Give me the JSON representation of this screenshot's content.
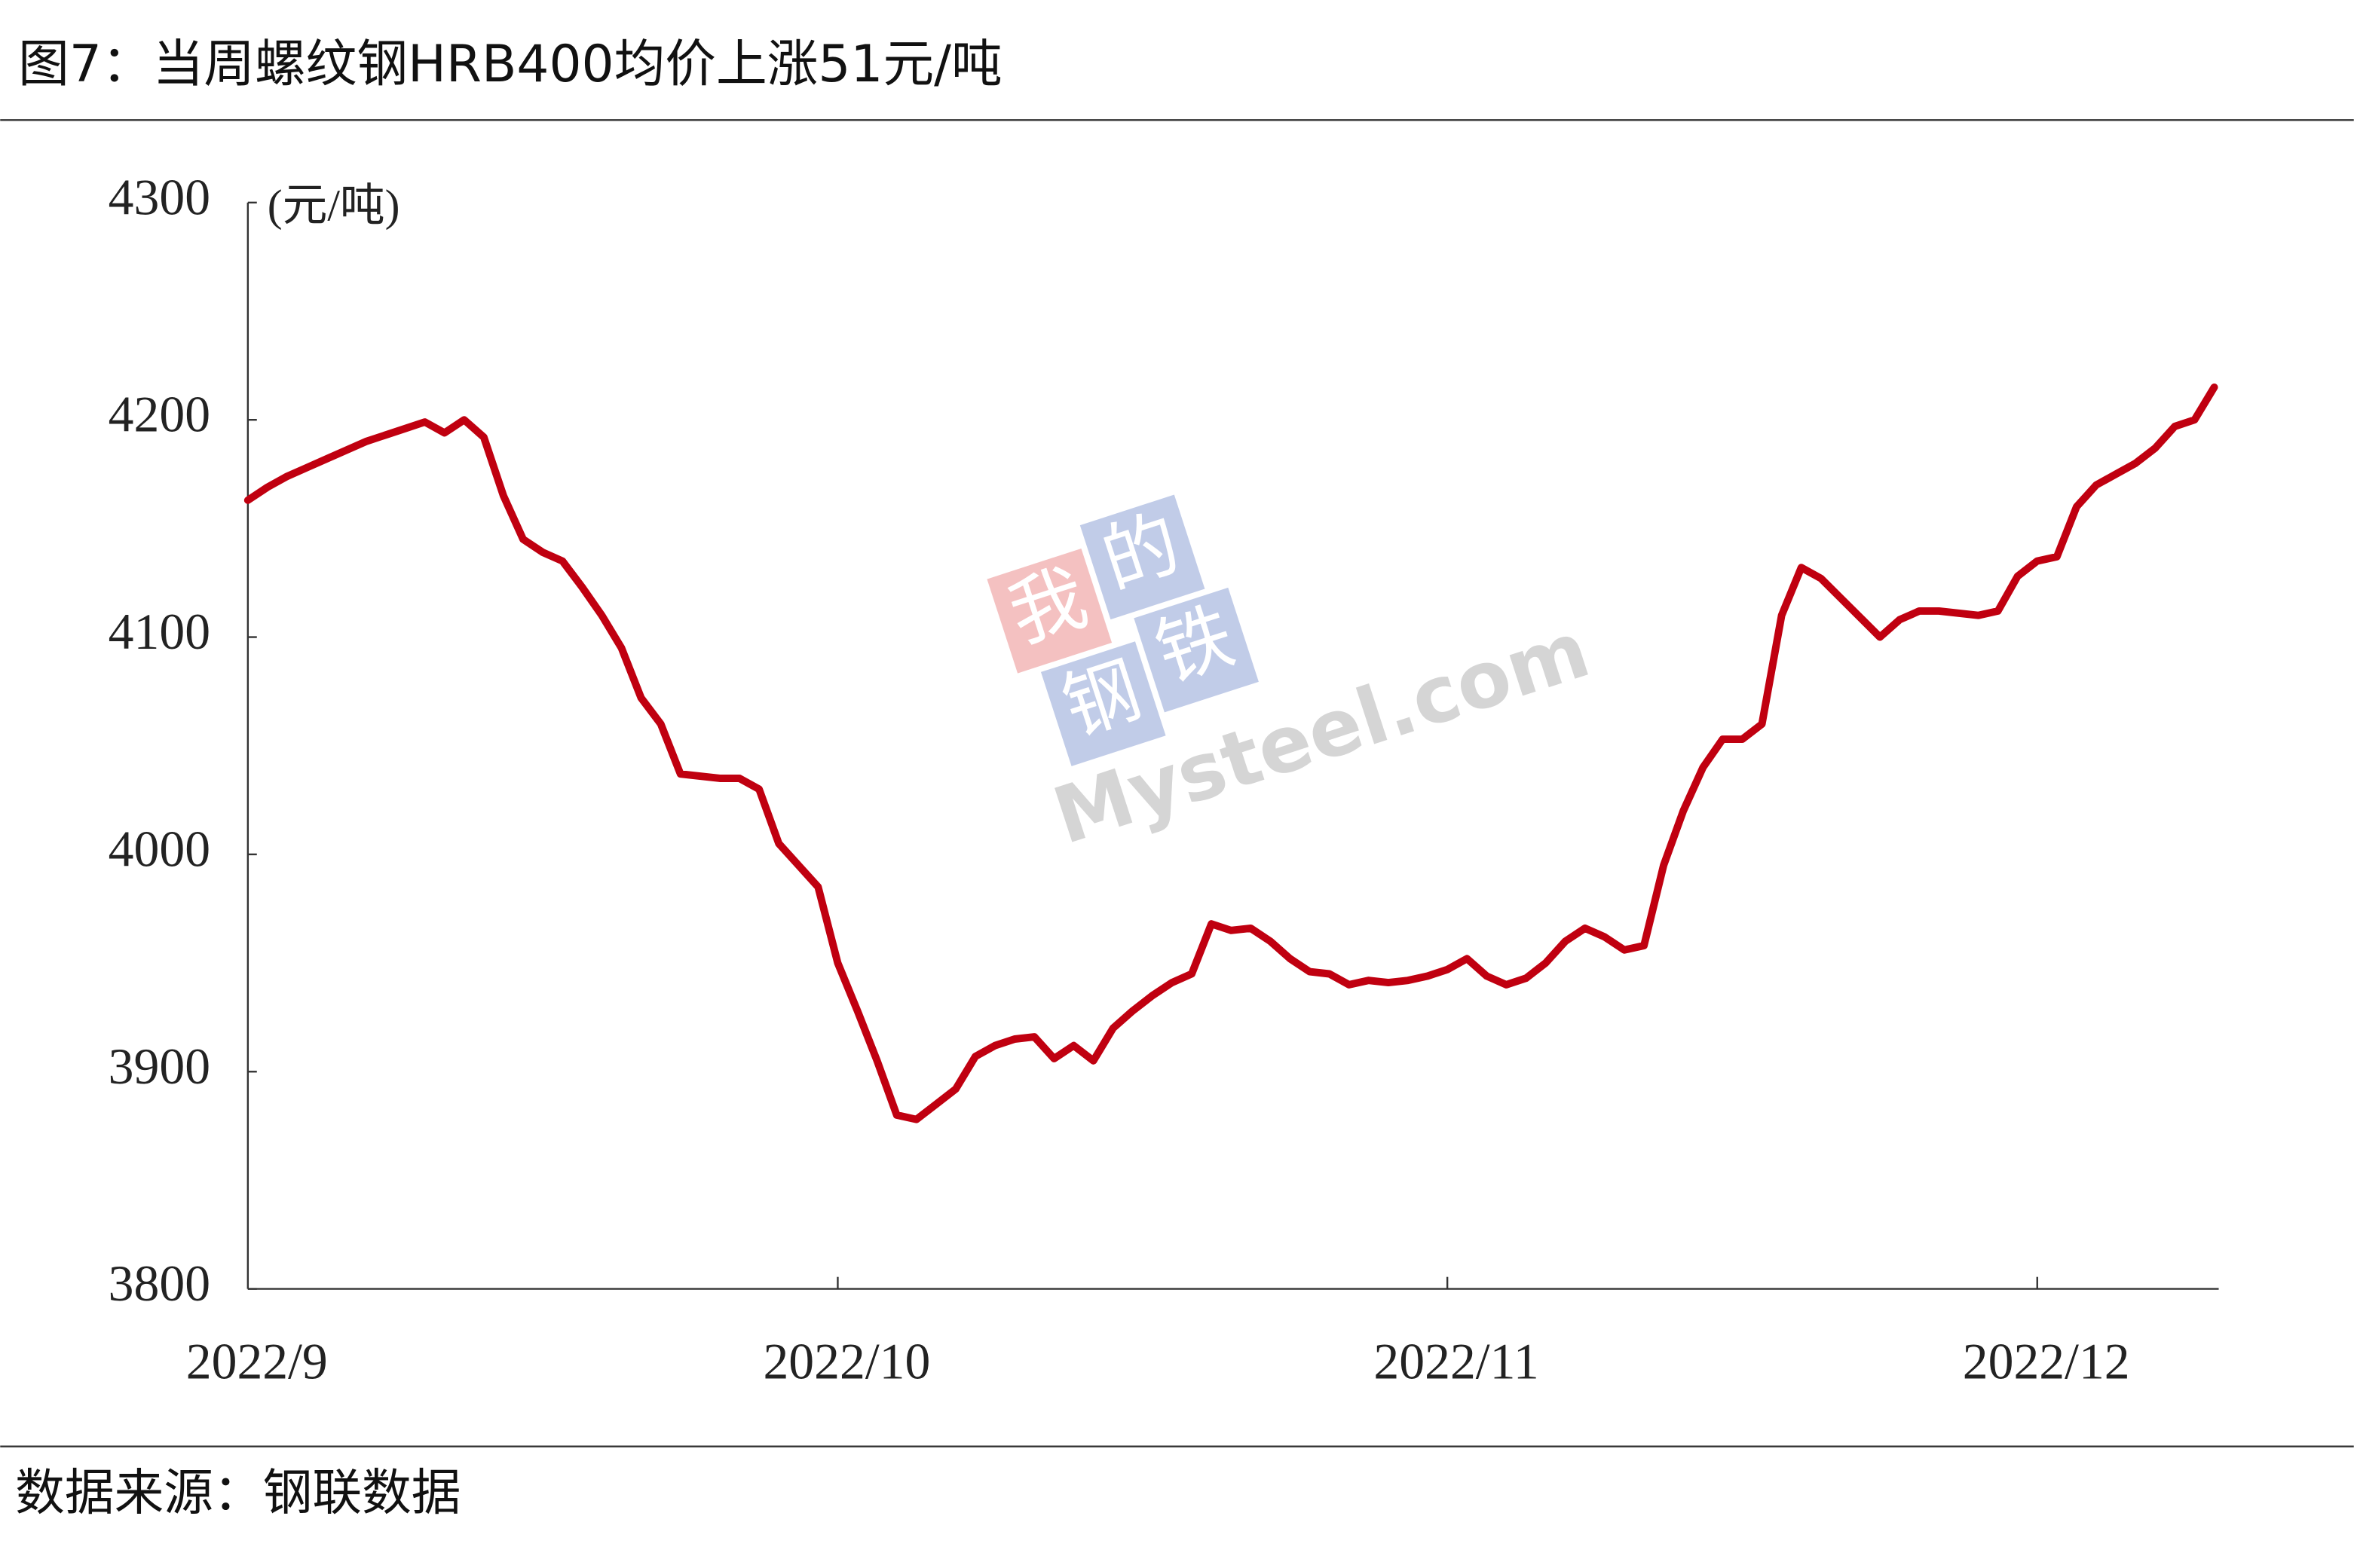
{
  "title": "图7：当周螺纹钢HRB400均价上涨51元/吨",
  "source": "数据来源：钢联数据",
  "watermark": {
    "logo": [
      "我",
      "的",
      "钢",
      "铁"
    ],
    "text": "Mysteel.com"
  },
  "chart_data": {
    "type": "line",
    "y_unit": "(元/吨)",
    "categories": [
      "2022/9",
      null,
      null,
      null,
      null,
      null,
      null,
      null,
      null,
      null,
      null,
      null,
      null,
      null,
      null,
      null,
      null,
      null,
      null,
      null,
      null,
      null,
      null,
      null,
      null,
      null,
      null,
      null,
      null,
      null,
      "2022/10",
      null,
      null,
      null,
      null,
      null,
      null,
      null,
      null,
      null,
      null,
      null,
      null,
      null,
      null,
      null,
      null,
      null,
      null,
      null,
      null,
      null,
      null,
      null,
      null,
      null,
      null,
      null,
      null,
      null,
      null,
      "2022/11",
      null,
      null,
      null,
      null,
      null,
      null,
      null,
      null,
      null,
      null,
      null,
      null,
      null,
      null,
      null,
      null,
      null,
      null,
      null,
      null,
      null,
      null,
      null,
      null,
      null,
      null,
      null,
      null,
      null,
      "2022/12",
      null,
      null,
      null,
      null,
      null,
      null,
      null,
      null,
      null
    ],
    "series": [
      {
        "name": "螺纹钢HRB400均价",
        "color": "#c00010",
        "values": [
          4163,
          4169,
          4174,
          4178,
          4182,
          4186,
          4190,
          4193,
          4196,
          4199,
          4194,
          4200,
          4192,
          4165,
          4145,
          4139,
          4135,
          4123,
          4110,
          4095,
          4072,
          4060,
          4037,
          4036,
          4035,
          4035,
          4030,
          4005,
          3995,
          3985,
          3950,
          3928,
          3905,
          3880,
          3878,
          3885,
          3892,
          3907,
          3912,
          3915,
          3916,
          3906,
          3912,
          3905,
          3920,
          3928,
          3935,
          3941,
          3945,
          3968,
          3965,
          3966,
          3960,
          3952,
          3946,
          3945,
          3940,
          3942,
          3941,
          3942,
          3944,
          3947,
          3952,
          3944,
          3940,
          3943,
          3950,
          3960,
          3966,
          3962,
          3956,
          3958,
          3995,
          4020,
          4040,
          4053,
          4053,
          4060,
          4110,
          4132,
          4127,
          4118,
          4109,
          4100,
          4108,
          4112,
          4112,
          4111,
          4110,
          4112,
          4128,
          4135,
          4137,
          4160,
          4170,
          4175,
          4180,
          4187,
          4197,
          4200,
          4215
        ]
      }
    ],
    "ylim": [
      3800,
      4300
    ],
    "yticks": [
      3800,
      3900,
      4000,
      4100,
      4200,
      4300
    ]
  }
}
